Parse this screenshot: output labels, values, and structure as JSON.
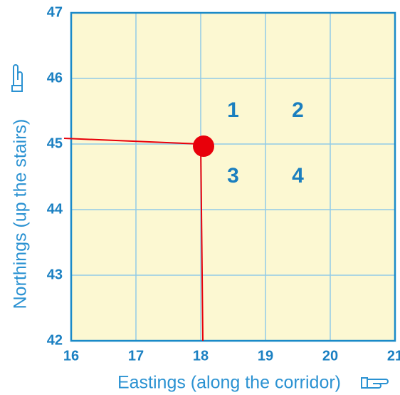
{
  "chart_data": {
    "type": "scatter",
    "x_label": "Eastings (along the corridor)",
    "y_label": "Northings (up the stairs)",
    "x": [
      18
    ],
    "values": [
      45
    ],
    "color": "#e8000a",
    "xlim": [
      16,
      21
    ],
    "ylim": [
      42,
      47
    ],
    "xticks": [
      16,
      17,
      18,
      19,
      20,
      21
    ],
    "yticks": [
      42,
      43,
      44,
      45,
      46,
      47
    ],
    "grid": true,
    "annotations": [
      "1",
      "2",
      "3",
      "4"
    ]
  }
}
